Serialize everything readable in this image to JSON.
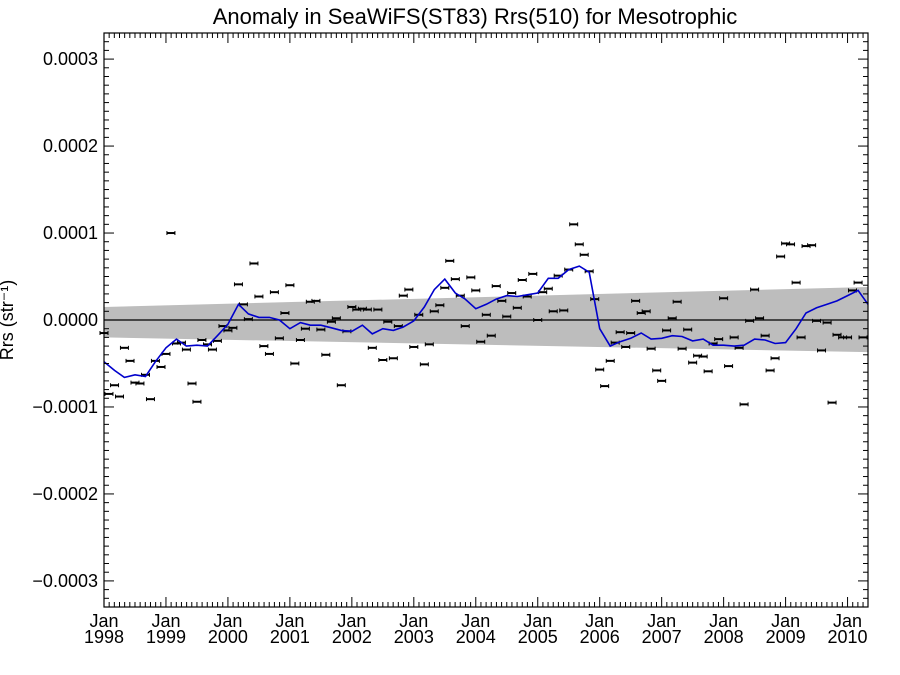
{
  "chart_data": {
    "type": "scatter",
    "title": "Anomaly in SeaWiFS(ST83) Rrs(510) for Mesotrophic",
    "ylabel": "Rrs (str⁻¹)",
    "xlabel": "",
    "xlim": [
      1998.0,
      2010.33
    ],
    "ylim": [
      -0.00033,
      0.00033
    ],
    "yticks": [
      {
        "value": 0.0003,
        "label": "0.0003"
      },
      {
        "value": 0.0002,
        "label": "0.0002"
      },
      {
        "value": 0.0001,
        "label": "0.0001"
      },
      {
        "value": 0.0,
        "label": "0.0000"
      },
      {
        "value": -0.0001,
        "label": "−0.0001"
      },
      {
        "value": -0.0002,
        "label": "−0.0002"
      },
      {
        "value": -0.0003,
        "label": "−0.0003"
      }
    ],
    "xticks": [
      {
        "value": 1998,
        "month": "Jan",
        "year": "1998"
      },
      {
        "value": 1999,
        "month": "Jan",
        "year": "1999"
      },
      {
        "value": 2000,
        "month": "Jan",
        "year": "2000"
      },
      {
        "value": 2001,
        "month": "Jan",
        "year": "2001"
      },
      {
        "value": 2002,
        "month": "Jan",
        "year": "2002"
      },
      {
        "value": 2003,
        "month": "Jan",
        "year": "2003"
      },
      {
        "value": 2004,
        "month": "Jan",
        "year": "2004"
      },
      {
        "value": 2005,
        "month": "Jan",
        "year": "2005"
      },
      {
        "value": 2006,
        "month": "Jan",
        "year": "2006"
      },
      {
        "value": 2007,
        "month": "Jan",
        "year": "2007"
      },
      {
        "value": 2008,
        "month": "Jan",
        "year": "2008"
      },
      {
        "value": 2009,
        "month": "Jan",
        "year": "2009"
      },
      {
        "value": 2010,
        "month": "Jan",
        "year": "2010"
      }
    ],
    "grid": false,
    "colors": {
      "points": "#000000",
      "smooth": "#0000cc",
      "band": "#bdbdbd",
      "zero_line": "#000000"
    },
    "trend_band": {
      "x": [
        1998.0,
        2010.33
      ],
      "lower": [
        -2e-05,
        -3.7e-05
      ],
      "upper": [
        1.5e-05,
        3.8e-05
      ]
    },
    "series": [
      {
        "kind": "monthly-anomaly",
        "x": [
          1998.0,
          1998.08,
          1998.17,
          1998.25,
          1998.33,
          1998.42,
          1998.5,
          1998.58,
          1998.67,
          1998.75,
          1998.83,
          1998.92,
          1999.0,
          1999.08,
          1999.17,
          1999.25,
          1999.33,
          1999.42,
          1999.5,
          1999.58,
          1999.67,
          1999.75,
          1999.83,
          1999.92,
          2000.0,
          2000.08,
          2000.17,
          2000.25,
          2000.33,
          2000.42,
          2000.5,
          2000.58,
          2000.67,
          2000.75,
          2000.83,
          2000.92,
          2001.0,
          2001.08,
          2001.17,
          2001.25,
          2001.33,
          2001.42,
          2001.5,
          2001.58,
          2001.67,
          2001.75,
          2001.83,
          2001.92,
          2002.0,
          2002.08,
          2002.17,
          2002.25,
          2002.33,
          2002.42,
          2002.5,
          2002.58,
          2002.67,
          2002.75,
          2002.83,
          2002.92,
          2003.0,
          2003.08,
          2003.17,
          2003.25,
          2003.33,
          2003.42,
          2003.5,
          2003.58,
          2003.67,
          2003.75,
          2003.83,
          2003.92,
          2004.0,
          2004.08,
          2004.17,
          2004.25,
          2004.33,
          2004.42,
          2004.5,
          2004.58,
          2004.67,
          2004.75,
          2004.83,
          2004.92,
          2005.0,
          2005.08,
          2005.17,
          2005.25,
          2005.33,
          2005.42,
          2005.5,
          2005.58,
          2005.67,
          2005.75,
          2005.83,
          2005.92,
          2006.0,
          2006.08,
          2006.17,
          2006.25,
          2006.33,
          2006.42,
          2006.5,
          2006.58,
          2006.67,
          2006.75,
          2006.83,
          2006.92,
          2007.0,
          2007.08,
          2007.17,
          2007.25,
          2007.33,
          2007.42,
          2007.5,
          2007.58,
          2007.67,
          2007.75,
          2007.83,
          2007.92,
          2008.0,
          2008.08,
          2008.17,
          2008.25,
          2008.33,
          2008.42,
          2008.5,
          2008.58,
          2008.67,
          2008.75,
          2008.83,
          2008.92,
          2009.0,
          2009.08,
          2009.17,
          2009.25,
          2009.33,
          2009.42,
          2009.5,
          2009.58,
          2009.67,
          2009.75,
          2009.83,
          2009.92,
          2010.0,
          2010.08,
          2010.17,
          2010.25
        ],
        "y": [
          -1.5e-05,
          -8.5e-05,
          -7.5e-05,
          -8.8e-05,
          -3.2e-05,
          -4.7e-05,
          -7.2e-05,
          -7.3e-05,
          -6.3e-05,
          -9.1e-05,
          -4.7e-05,
          -5.4e-05,
          -3.9e-05,
          0.0001,
          -2.7e-05,
          -2.6e-05,
          -3.4e-05,
          -7.3e-05,
          -9.4e-05,
          -2.3e-05,
          -2.8e-05,
          -3.4e-05,
          -2.4e-05,
          -7e-06,
          -1.2e-05,
          -9e-06,
          4.1e-05,
          1.8e-05,
          1e-06,
          6.5e-05,
          2.7e-05,
          -3e-05,
          -3.9e-05,
          3.2e-05,
          -2.1e-05,
          8e-06,
          4e-05,
          -5e-05,
          -2.3e-05,
          -1e-05,
          2.1e-05,
          2.2e-05,
          -1.1e-05,
          -4e-05,
          -2e-06,
          2e-06,
          -7.5e-05,
          -1.3e-05,
          1.5e-05,
          1.2e-05,
          1.3e-05,
          1.2e-05,
          -3.2e-05,
          1.2e-05,
          -4.6e-05,
          -2e-06,
          -4.4e-05,
          -7e-06,
          2.8e-05,
          3.5e-05,
          -3.1e-05,
          6e-06,
          -5.1e-05,
          -2.8e-05,
          1e-05,
          1.7e-05,
          3.7e-05,
          6.8e-05,
          4.7e-05,
          2.8e-05,
          -7e-06,
          4.9e-05,
          3.4e-05,
          -2.5e-05,
          6e-06,
          -1.8e-05,
          3.9e-05,
          2.2e-05,
          4e-06,
          3.1e-05,
          1.4e-05,
          4.6e-05,
          2.7e-05,
          5.3e-05,
          0.0,
          3.2e-05,
          3.6e-05,
          1e-05,
          5.1e-05,
          1.1e-05,
          5.8e-05,
          0.00011,
          8.7e-05,
          7.5e-05,
          5.6e-05,
          2.4e-05,
          -5.7e-05,
          -7.6e-05,
          -4.7e-05,
          -2.6e-05,
          -1.4e-05,
          -3.1e-05,
          -1.5e-05,
          2.2e-05,
          8e-06,
          1e-05,
          -3.3e-05,
          -5.8e-05,
          -7e-05,
          -1.2e-05,
          2e-06,
          2.1e-05,
          -3.3e-05,
          -1.1e-05,
          -4.9e-05,
          -4.1e-05,
          -4.2e-05,
          -5.9e-05,
          -2.7e-05,
          -2.2e-05,
          2.5e-05,
          -5.3e-05,
          -2e-05,
          -3.2e-05,
          -9.7e-05,
          -1e-06,
          3.5e-05,
          2e-06,
          -1.8e-05,
          -5.8e-05,
          -4.4e-05,
          7.3e-05,
          8.8e-05,
          8.7e-05,
          4.3e-05,
          -2e-05,
          8.5e-05,
          8.6e-05,
          -1e-06,
          -3.5e-05,
          -3e-06,
          -9.5e-05,
          -1.7e-05,
          -2e-05,
          -2e-05,
          3.4e-05,
          4.3e-05,
          -2e-05
        ]
      },
      {
        "kind": "smoothed",
        "x": [
          1998.0,
          1998.17,
          1998.33,
          1998.5,
          1998.67,
          1998.83,
          1999.0,
          1999.17,
          1999.33,
          1999.5,
          1999.67,
          1999.83,
          2000.0,
          2000.17,
          2000.33,
          2000.5,
          2000.67,
          2000.83,
          2001.0,
          2001.17,
          2001.33,
          2001.5,
          2001.67,
          2001.83,
          2002.0,
          2002.17,
          2002.33,
          2002.5,
          2002.67,
          2002.83,
          2003.0,
          2003.17,
          2003.33,
          2003.5,
          2003.67,
          2003.83,
          2004.0,
          2004.17,
          2004.33,
          2004.5,
          2004.67,
          2004.83,
          2005.0,
          2005.17,
          2005.33,
          2005.5,
          2005.67,
          2005.83,
          2006.0,
          2006.17,
          2006.33,
          2006.5,
          2006.67,
          2006.83,
          2007.0,
          2007.17,
          2007.33,
          2007.5,
          2007.67,
          2007.83,
          2008.0,
          2008.17,
          2008.33,
          2008.5,
          2008.67,
          2008.83,
          2009.0,
          2009.17,
          2009.33,
          2009.5,
          2009.67,
          2009.83,
          2010.0,
          2010.17,
          2010.33
        ],
        "y": [
          -4.8e-05,
          -5.8e-05,
          -6.6e-05,
          -6.3e-05,
          -6.5e-05,
          -4.8e-05,
          -3.2e-05,
          -2.2e-05,
          -3e-05,
          -2.9e-05,
          -3e-05,
          -1.8e-05,
          -5e-06,
          1.8e-05,
          7e-06,
          3e-06,
          3e-06,
          0.0,
          -1e-05,
          -3e-06,
          -6e-06,
          -6e-06,
          -9e-06,
          -1.2e-05,
          -1.3e-05,
          -6e-06,
          -1.6e-05,
          -1e-05,
          -1.2e-05,
          -8e-06,
          -1e-06,
          1.5e-05,
          3.5e-05,
          4.7e-05,
          3.1e-05,
          2.4e-05,
          1.3e-05,
          1.8e-05,
          2.4e-05,
          2.8e-05,
          2.7e-05,
          2.9e-05,
          3.1e-05,
          4.8e-05,
          4.8e-05,
          5.8e-05,
          6.2e-05,
          5.5e-05,
          -1e-05,
          -3e-05,
          -2.5e-05,
          -2.1e-05,
          -1.5e-05,
          -2.2e-05,
          -2.1e-05,
          -1.8e-05,
          -1.9e-05,
          -2.4e-05,
          -2.2e-05,
          -2.9e-05,
          -2.9e-05,
          -3e-05,
          -2.9e-05,
          -2.2e-05,
          -2.3e-05,
          -2.7e-05,
          -2.6e-05,
          -1e-05,
          8e-06,
          1.4e-05,
          1.8e-05,
          2.2e-05,
          2.8e-05,
          3.4e-05,
          1.8e-05
        ]
      }
    ]
  }
}
